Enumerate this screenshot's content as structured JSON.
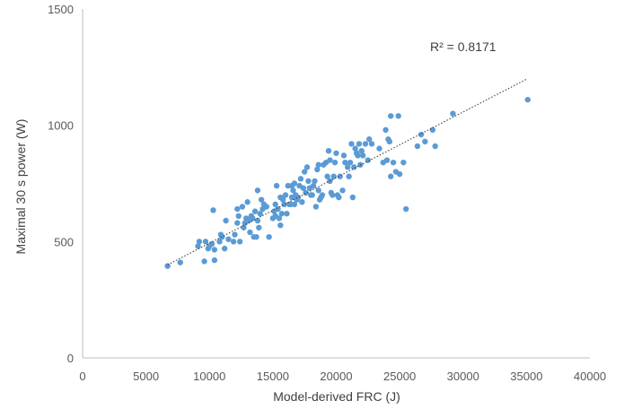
{
  "chart_data": {
    "type": "scatter",
    "xlabel": "Model-derived FRC (J)",
    "ylabel": "Maximal 30 s power (W)",
    "xlim": [
      0,
      40000
    ],
    "ylim": [
      0,
      1500
    ],
    "x_ticks": [
      0,
      5000,
      10000,
      15000,
      20000,
      25000,
      30000,
      35000,
      40000
    ],
    "y_ticks": [
      0,
      500,
      1000,
      1500
    ],
    "annotation": "R² = 0.8171",
    "trendline": {
      "style": "dotted",
      "x_start": 6700,
      "y_start": 400,
      "x_end": 35000,
      "y_end": 1198
    },
    "marker_color": "#5b9bd5",
    "axis_color": "#bfbfbf",
    "series": [
      {
        "points": [
          [
            6700,
            395
          ],
          [
            7700,
            410
          ],
          [
            9100,
            480
          ],
          [
            9200,
            500
          ],
          [
            9600,
            415
          ],
          [
            9700,
            500
          ],
          [
            9900,
            470
          ],
          [
            10000,
            480
          ],
          [
            10200,
            490
          ],
          [
            10300,
            635
          ],
          [
            10400,
            465
          ],
          [
            10400,
            420
          ],
          [
            10800,
            500
          ],
          [
            10900,
            530
          ],
          [
            11000,
            520
          ],
          [
            11200,
            470
          ],
          [
            11300,
            590
          ],
          [
            11500,
            510
          ],
          [
            11900,
            500
          ],
          [
            12000,
            530
          ],
          [
            12200,
            640
          ],
          [
            12200,
            580
          ],
          [
            12300,
            610
          ],
          [
            12400,
            500
          ],
          [
            12600,
            650
          ],
          [
            12700,
            560
          ],
          [
            12800,
            580
          ],
          [
            12900,
            600
          ],
          [
            13000,
            670
          ],
          [
            13100,
            590
          ],
          [
            13200,
            540
          ],
          [
            13300,
            610
          ],
          [
            13400,
            600
          ],
          [
            13500,
            520
          ],
          [
            13600,
            630
          ],
          [
            13700,
            520
          ],
          [
            13800,
            590
          ],
          [
            13800,
            720
          ],
          [
            13900,
            560
          ],
          [
            14000,
            620
          ],
          [
            14100,
            680
          ],
          [
            14200,
            640
          ],
          [
            14300,
            660
          ],
          [
            14500,
            650
          ],
          [
            14700,
            520
          ],
          [
            15000,
            600
          ],
          [
            15100,
            630
          ],
          [
            15200,
            610
          ],
          [
            15200,
            660
          ],
          [
            15300,
            740
          ],
          [
            15400,
            640
          ],
          [
            15500,
            600
          ],
          [
            15600,
            570
          ],
          [
            15600,
            690
          ],
          [
            15700,
            620
          ],
          [
            15800,
            680
          ],
          [
            15900,
            660
          ],
          [
            16000,
            700
          ],
          [
            16100,
            620
          ],
          [
            16200,
            740
          ],
          [
            16300,
            660
          ],
          [
            16400,
            660
          ],
          [
            16500,
            690
          ],
          [
            16500,
            740
          ],
          [
            16600,
            720
          ],
          [
            16700,
            750
          ],
          [
            16700,
            660
          ],
          [
            16800,
            700
          ],
          [
            16900,
            680
          ],
          [
            17000,
            690
          ],
          [
            17100,
            740
          ],
          [
            17200,
            770
          ],
          [
            17300,
            670
          ],
          [
            17400,
            730
          ],
          [
            17500,
            800
          ],
          [
            17600,
            710
          ],
          [
            17700,
            820
          ],
          [
            17800,
            760
          ],
          [
            17900,
            730
          ],
          [
            18000,
            700
          ],
          [
            18100,
            700
          ],
          [
            18200,
            740
          ],
          [
            18300,
            760
          ],
          [
            18400,
            650
          ],
          [
            18500,
            810
          ],
          [
            18600,
            830
          ],
          [
            18600,
            720
          ],
          [
            18700,
            680
          ],
          [
            18800,
            690
          ],
          [
            18900,
            700
          ],
          [
            19000,
            830
          ],
          [
            19200,
            840
          ],
          [
            19300,
            780
          ],
          [
            19400,
            890
          ],
          [
            19500,
            850
          ],
          [
            19500,
            760
          ],
          [
            19600,
            710
          ],
          [
            19700,
            700
          ],
          [
            19800,
            780
          ],
          [
            19900,
            840
          ],
          [
            20000,
            880
          ],
          [
            20100,
            700
          ],
          [
            20200,
            690
          ],
          [
            20300,
            780
          ],
          [
            20500,
            720
          ],
          [
            20600,
            870
          ],
          [
            20700,
            840
          ],
          [
            20900,
            820
          ],
          [
            21000,
            780
          ],
          [
            21100,
            840
          ],
          [
            21200,
            920
          ],
          [
            21300,
            690
          ],
          [
            21400,
            820
          ],
          [
            21500,
            900
          ],
          [
            21600,
            880
          ],
          [
            21700,
            870
          ],
          [
            21800,
            920
          ],
          [
            21900,
            830
          ],
          [
            22000,
            890
          ],
          [
            22100,
            870
          ],
          [
            22300,
            920
          ],
          [
            22500,
            850
          ],
          [
            22600,
            940
          ],
          [
            22800,
            920
          ],
          [
            23400,
            900
          ],
          [
            23700,
            840
          ],
          [
            23900,
            980
          ],
          [
            24000,
            850
          ],
          [
            24100,
            940
          ],
          [
            24200,
            930
          ],
          [
            24300,
            1040
          ],
          [
            24300,
            780
          ],
          [
            24500,
            840
          ],
          [
            24700,
            800
          ],
          [
            24900,
            1040
          ],
          [
            25000,
            790
          ],
          [
            25300,
            840
          ],
          [
            25500,
            640
          ],
          [
            26400,
            910
          ],
          [
            26700,
            960
          ],
          [
            27000,
            930
          ],
          [
            27600,
            980
          ],
          [
            27800,
            910
          ],
          [
            29200,
            1050
          ],
          [
            35100,
            1110
          ]
        ]
      }
    ]
  }
}
